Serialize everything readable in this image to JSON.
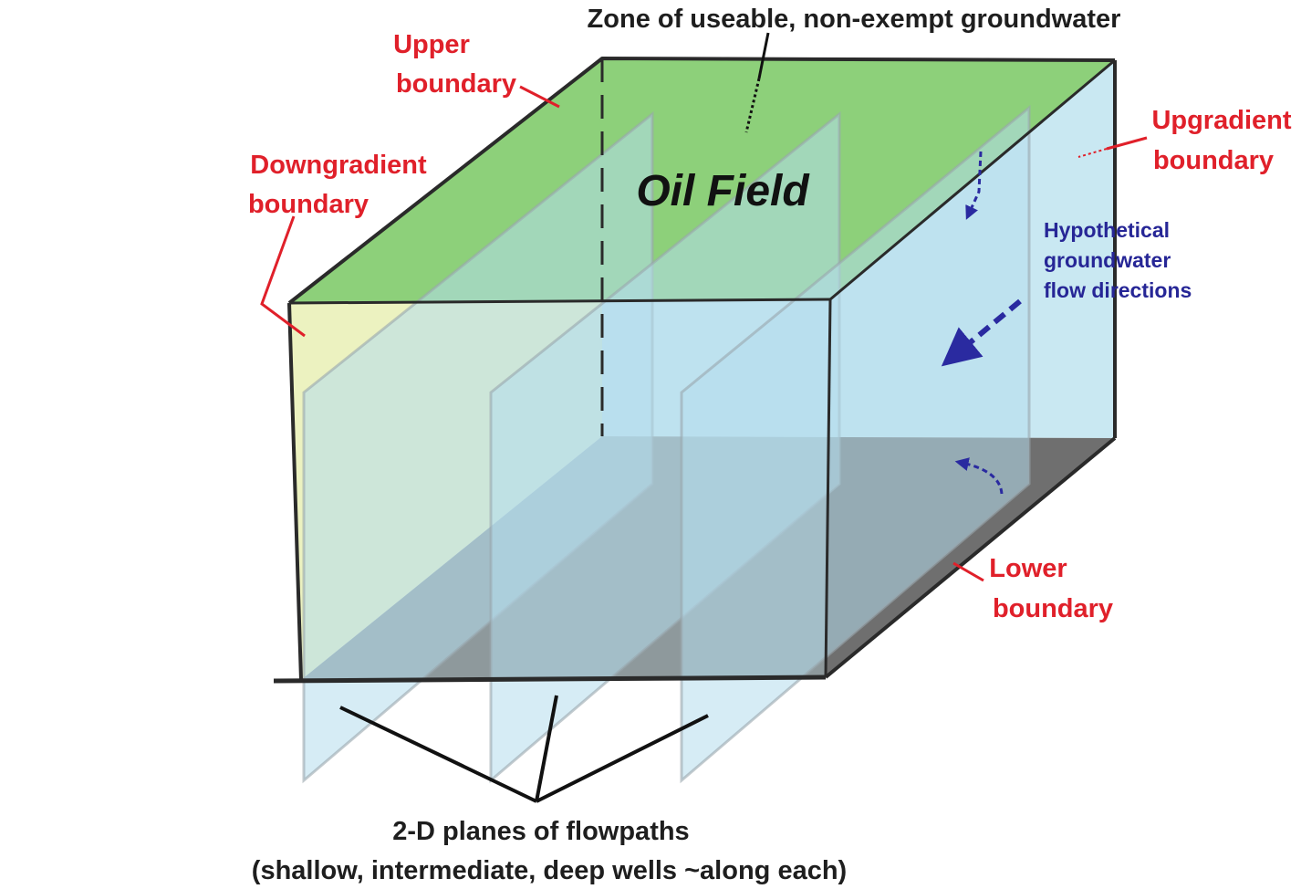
{
  "labels": {
    "zone": "Zone of useable, non-exempt groundwater",
    "upper": [
      "Upper",
      "boundary"
    ],
    "downgradient": [
      "Downgradient",
      "boundary"
    ],
    "upgradient": [
      "Upgradient",
      "boundary"
    ],
    "lower": [
      "Lower",
      "boundary"
    ],
    "flow": [
      "Hypothetical",
      "groundwater",
      "flow directions"
    ],
    "oil_field": "Oil Field",
    "planes": [
      "2-D planes of flowpaths",
      "(shallow, intermediate, deep wells ~along each)"
    ]
  },
  "colors": {
    "top_face": "#8dd07a",
    "left_face": "#fff8a6",
    "right_face": "#c9e8f2",
    "bottom_face": "#6f6f6f",
    "plane_fill": "#b4dcec",
    "boundary_text": "#e0202a",
    "flow_text": "#262696",
    "arrow": "#2a2aa0"
  }
}
